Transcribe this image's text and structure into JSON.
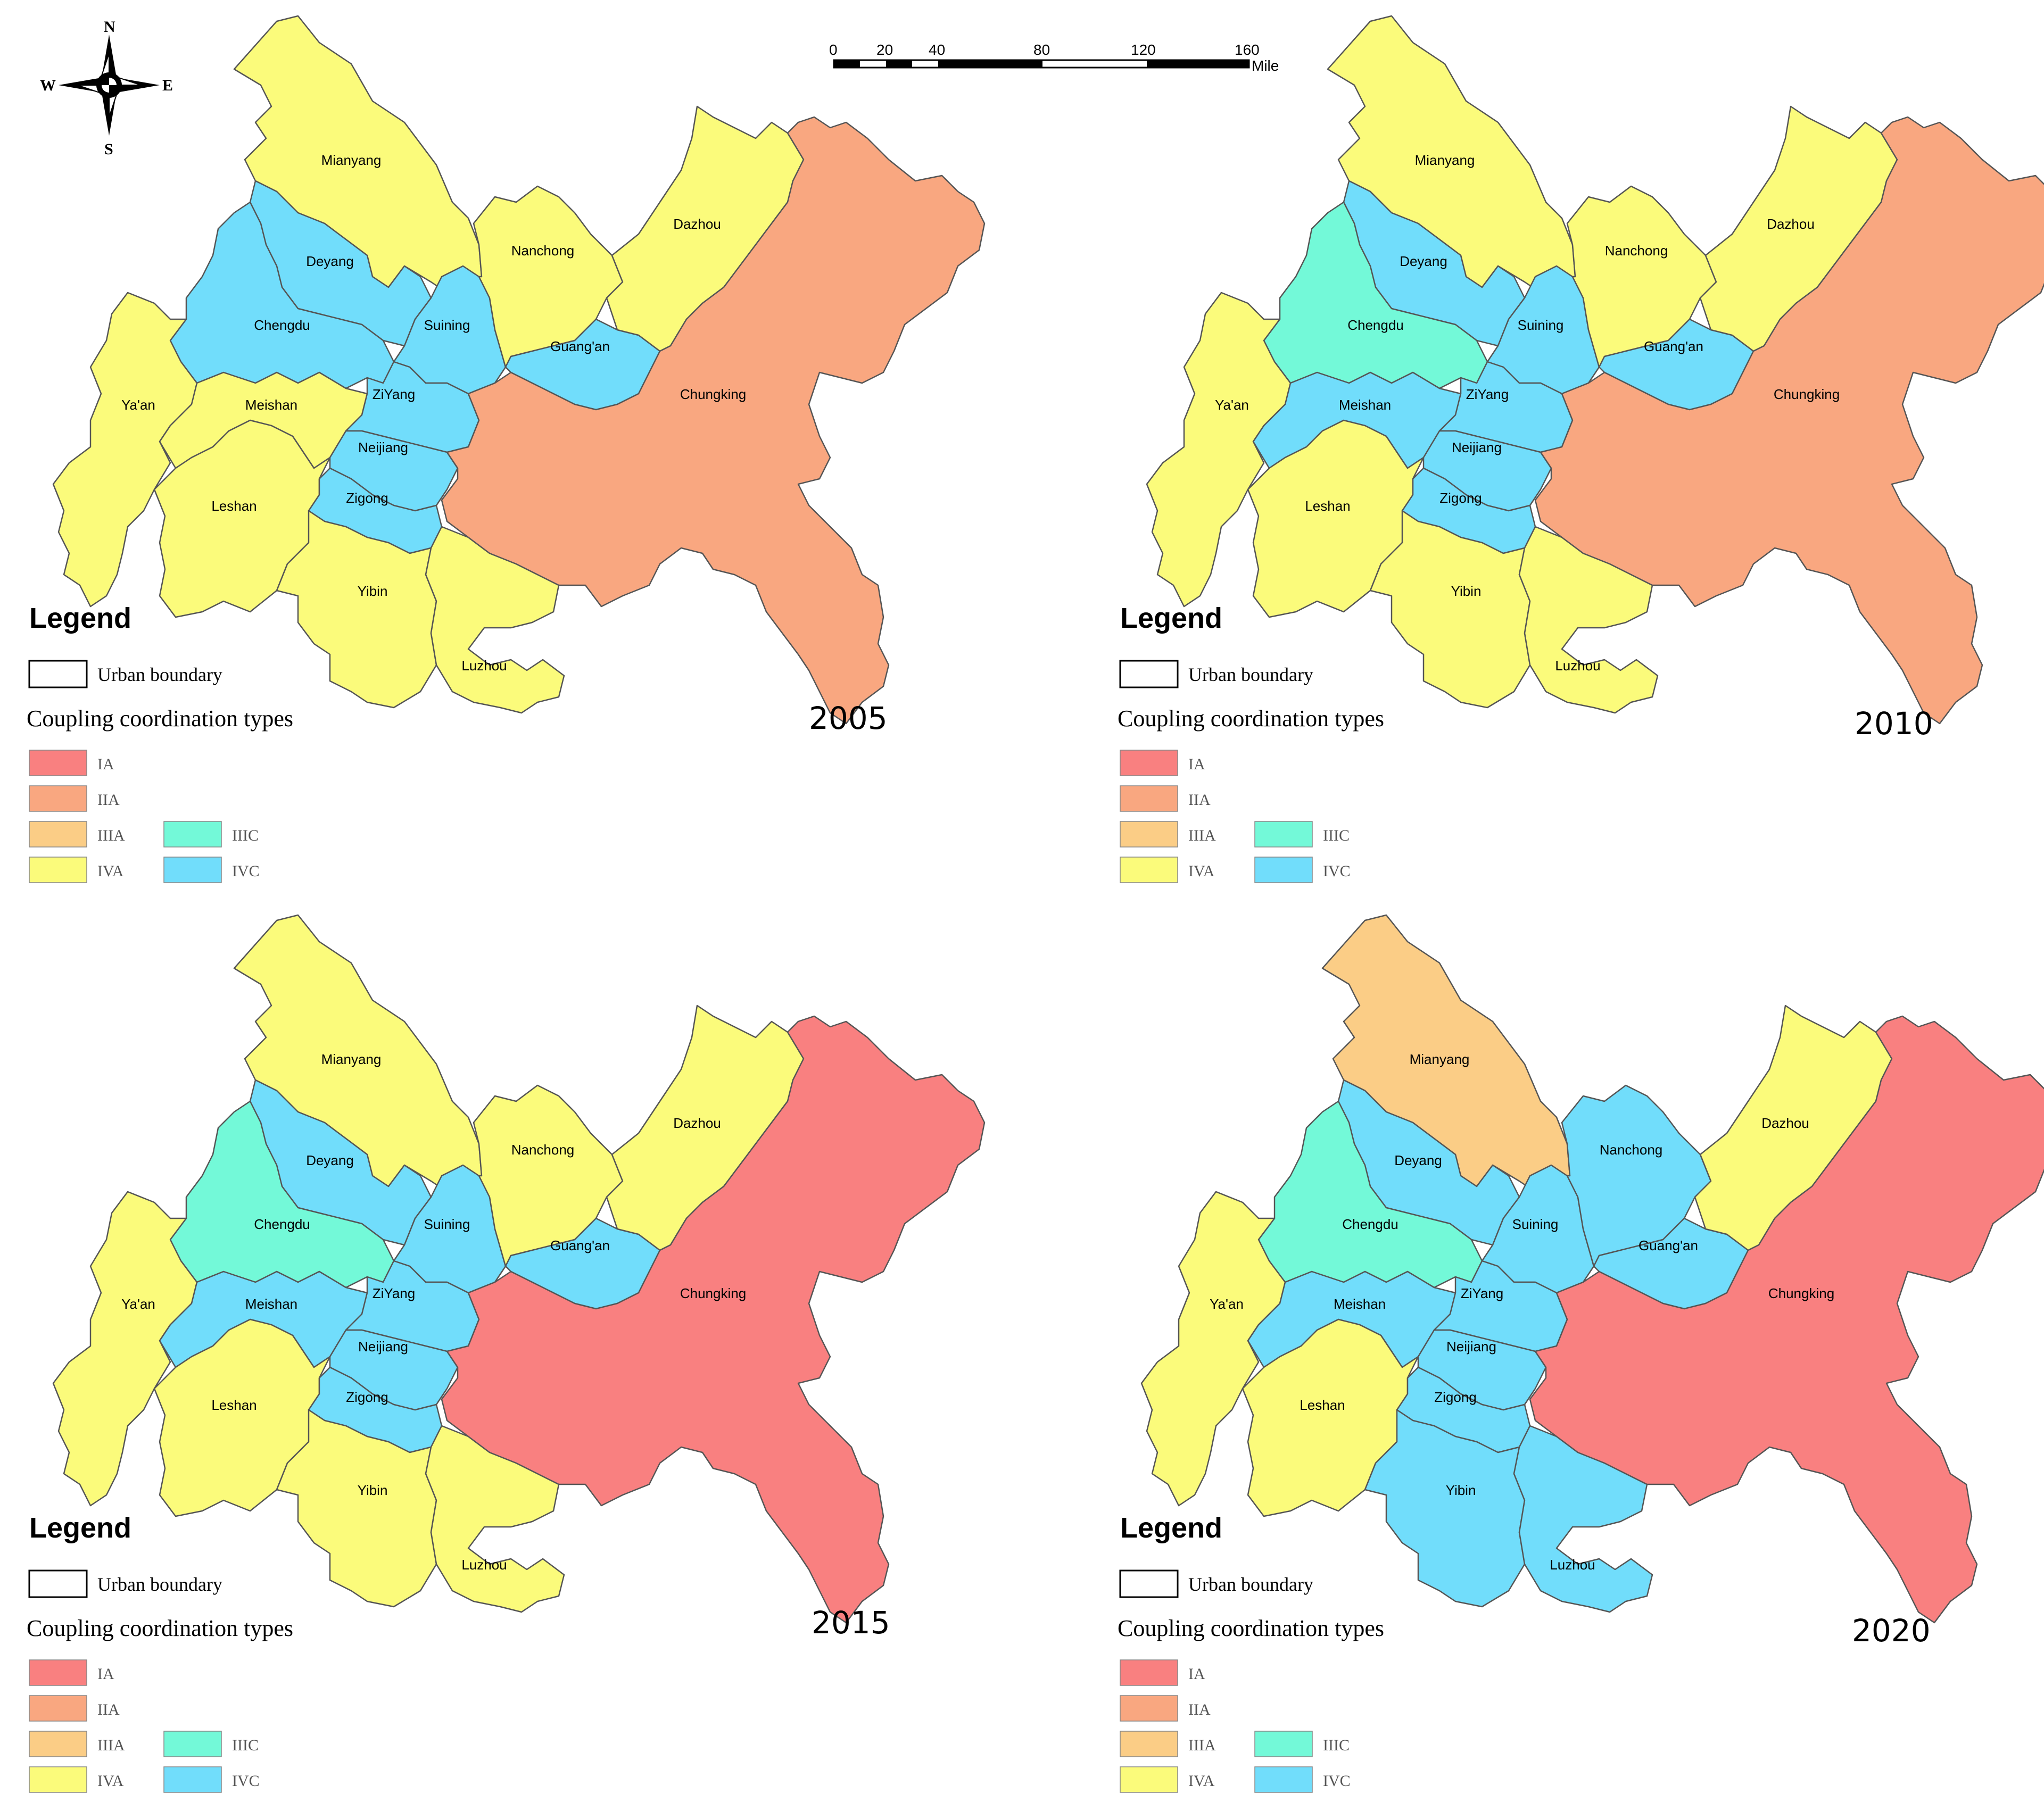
{
  "compass": {
    "n": "N",
    "s": "S",
    "e": "E",
    "w": "W"
  },
  "scale_bar": {
    "ticks": [
      "0",
      "20",
      "40",
      "80",
      "120",
      "160"
    ],
    "unit": "Mile"
  },
  "legend": {
    "title": "Legend",
    "boundary_label": "Urban boundary",
    "types_heading": "Coupling coordination types",
    "types": [
      {
        "code": "IA",
        "color": "#F98080"
      },
      {
        "code": "IIA",
        "color": "#F9A780"
      },
      {
        "code": "IIIA",
        "color": "#FBCD86"
      },
      {
        "code": "IVA",
        "color": "#FBFB7B"
      },
      {
        "code": "IIIC",
        "color": "#73F9D8"
      },
      {
        "code": "IVC",
        "color": "#71DDFB"
      }
    ]
  },
  "cities": [
    "Mianyang",
    "Deyang",
    "Chengdu",
    "Ya'an",
    "Meishan",
    "Leshan",
    "Suining",
    "ZiYang",
    "Neijiang",
    "Zigong",
    "Yibin",
    "Luzhou",
    "Nanchong",
    "Guang'an",
    "Dazhou",
    "Chungking"
  ],
  "panels": [
    {
      "year": "2005",
      "types": {
        "Mianyang": "IVA",
        "Deyang": "IVC",
        "Chengdu": "IVC",
        "Ya'an": "IVA",
        "Meishan": "IVA",
        "Leshan": "IVA",
        "Suining": "IVC",
        "ZiYang": "IVC",
        "Neijiang": "IVC",
        "Zigong": "IVC",
        "Yibin": "IVA",
        "Luzhou": "IVA",
        "Nanchong": "IVA",
        "Guang'an": "IVC",
        "Dazhou": "IVA",
        "Chungking": "IIA"
      }
    },
    {
      "year": "2010",
      "types": {
        "Mianyang": "IVA",
        "Deyang": "IVC",
        "Chengdu": "IIIC",
        "Ya'an": "IVA",
        "Meishan": "IVC",
        "Leshan": "IVA",
        "Suining": "IVC",
        "ZiYang": "IVC",
        "Neijiang": "IVC",
        "Zigong": "IVC",
        "Yibin": "IVA",
        "Luzhou": "IVA",
        "Nanchong": "IVA",
        "Guang'an": "IVC",
        "Dazhou": "IVA",
        "Chungking": "IIA"
      }
    },
    {
      "year": "2015",
      "types": {
        "Mianyang": "IVA",
        "Deyang": "IVC",
        "Chengdu": "IIIC",
        "Ya'an": "IVA",
        "Meishan": "IVC",
        "Leshan": "IVA",
        "Suining": "IVC",
        "ZiYang": "IVC",
        "Neijiang": "IVC",
        "Zigong": "IVC",
        "Yibin": "IVA",
        "Luzhou": "IVA",
        "Nanchong": "IVA",
        "Guang'an": "IVC",
        "Dazhou": "IVA",
        "Chungking": "IA"
      }
    },
    {
      "year": "2020",
      "types": {
        "Mianyang": "IIIA",
        "Deyang": "IVC",
        "Chengdu": "IIIC",
        "Ya'an": "IVA",
        "Meishan": "IVC",
        "Leshan": "IVA",
        "Suining": "IVC",
        "ZiYang": "IVC",
        "Neijiang": "IVC",
        "Zigong": "IVC",
        "Yibin": "IVC",
        "Luzhou": "IVC",
        "Nanchong": "IVC",
        "Guang'an": "IVC",
        "Dazhou": "IVA",
        "Chungking": "IA"
      }
    }
  ]
}
